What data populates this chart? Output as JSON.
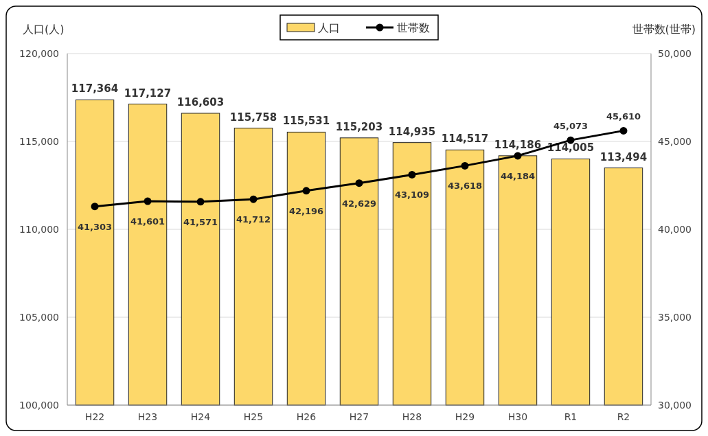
{
  "chart_data": {
    "type": "bar",
    "ylabel": "人口(人)",
    "y2label": "世帯数(世帯)",
    "categories": [
      "H22",
      "H23",
      "H24",
      "H25",
      "H26",
      "H27",
      "H28",
      "H29",
      "H30",
      "R1",
      "R2"
    ],
    "series": [
      {
        "name": "人口",
        "color": "#fdd86a",
        "values": [
          117364,
          117127,
          116603,
          115758,
          115531,
          115203,
          114935,
          114517,
          114186,
          114005,
          113494
        ],
        "value_labels": [
          "117,364",
          "117,127",
          "116,603",
          "115,758",
          "115,531",
          "115,203",
          "114,935",
          "114,517",
          "114,186",
          "114,005",
          "113,494"
        ]
      },
      {
        "name": "世帯数",
        "type": "line",
        "axis": "y2",
        "color": "#000000",
        "marker": "circle",
        "values": [
          41303,
          41601,
          41571,
          41712,
          42196,
          42629,
          43109,
          43618,
          44184,
          45073,
          45610
        ],
        "value_labels": [
          "41,303",
          "41,601",
          "41,571",
          "41,712",
          "42,196",
          "42,629",
          "43,109",
          "43,618",
          "44,184",
          "45,073",
          "45,610"
        ]
      }
    ],
    "ylim": [
      100000,
      120000
    ],
    "yticks": [
      {
        "value": 100000,
        "label": "100,000"
      },
      {
        "value": 105000,
        "label": "105,000"
      },
      {
        "value": 110000,
        "label": "110,000"
      },
      {
        "value": 115000,
        "label": "115,000"
      },
      {
        "value": 120000,
        "label": "120,000"
      }
    ],
    "y2lim": [
      30000,
      50000
    ],
    "y2ticks": [
      {
        "value": 30000,
        "label": "30,000"
      },
      {
        "value": 35000,
        "label": "35,000"
      },
      {
        "value": 40000,
        "label": "40,000"
      },
      {
        "value": 45000,
        "label": "45,000"
      },
      {
        "value": 50000,
        "label": "50,000"
      }
    ],
    "grid": "y",
    "legend": "top"
  }
}
